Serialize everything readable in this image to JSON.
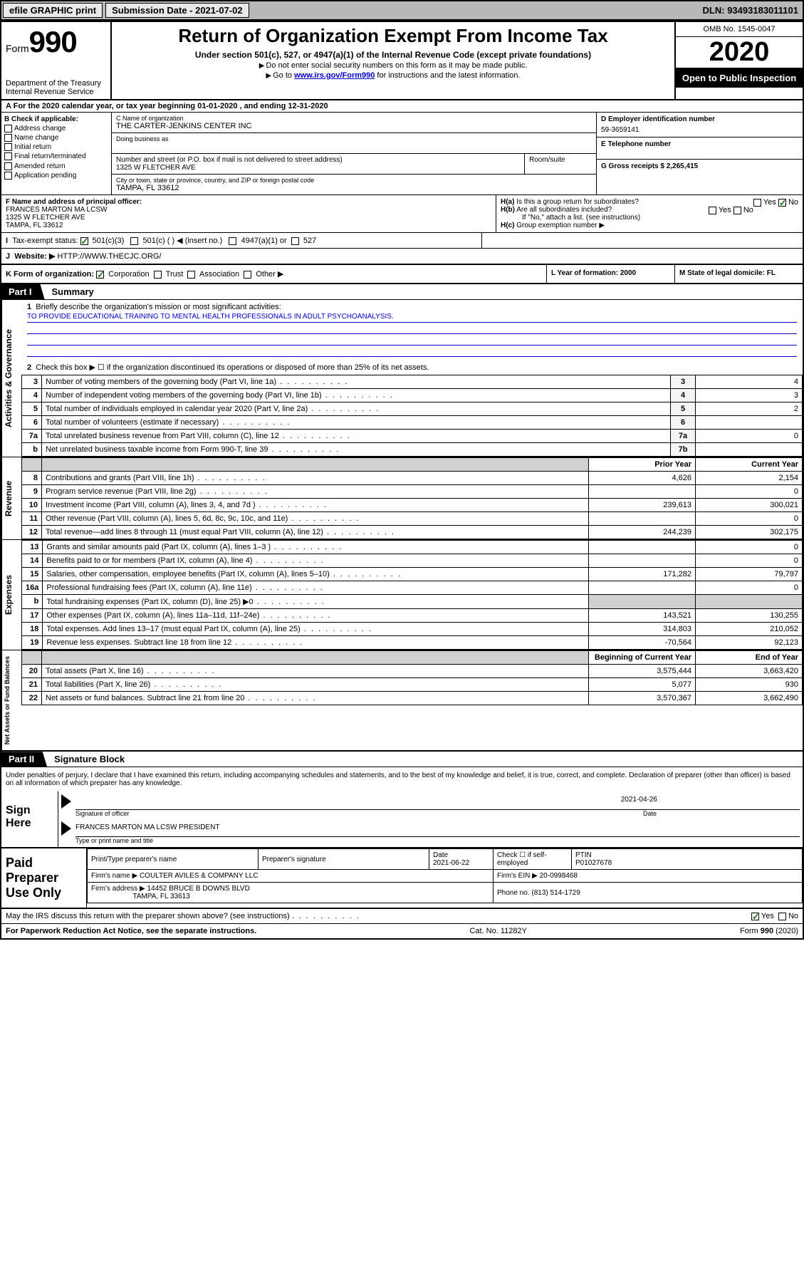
{
  "top": {
    "efile": "efile GRAPHIC print",
    "submission_label": "Submission Date - 2021-07-02",
    "dln_label": "DLN: 93493183011101"
  },
  "header": {
    "form_prefix": "Form",
    "form_num": "990",
    "dept": "Department of the Treasury\nInternal Revenue Service",
    "title": "Return of Organization Exempt From Income Tax",
    "sub": "Under section 501(c), 527, or 4947(a)(1) of the Internal Revenue Code (except private foundations)",
    "note1": "Do not enter social security numbers on this form as it may be made public.",
    "note2_pre": "Go to ",
    "note2_link": "www.irs.gov/Form990",
    "note2_post": " for instructions and the latest information.",
    "omb": "OMB No. 1545-0047",
    "year": "2020",
    "open": "Open to Public Inspection"
  },
  "row_a": "For the 2020 calendar year, or tax year beginning 01-01-2020   , and ending 12-31-2020",
  "section_b": {
    "label": "B Check if applicable:",
    "items": [
      "Address change",
      "Name change",
      "Initial return",
      "Final return/terminated",
      "Amended return",
      "Application pending"
    ]
  },
  "section_c": {
    "name_label": "C Name of organization",
    "name": "THE CARTER-JENKINS CENTER INC",
    "dba_label": "Doing business as",
    "addr_label": "Number and street (or P.O. box if mail is not delivered to street address)",
    "addr": "1325 W FLETCHER AVE",
    "room_label": "Room/suite",
    "city_label": "City or town, state or province, country, and ZIP or foreign postal code",
    "city": "TAMPA, FL  33612"
  },
  "section_d": {
    "label": "D Employer identification number",
    "ein": "59-3659141",
    "e_label": "E Telephone number",
    "g_label": "G Gross receipts $ 2,265,415"
  },
  "section_f": {
    "label": "F Name and address of principal officer:",
    "name": "FRANCES MARTON MA LCSW",
    "addr": "1325 W FLETCHER AVE",
    "city": "TAMPA, FL  33612"
  },
  "section_h": {
    "a": "Is this a group return for subordinates?",
    "b": "Are all subordinates included?",
    "b_note": "If \"No,\" attach a list. (see instructions)",
    "c": "Group exemption number ▶",
    "ha_no": true
  },
  "section_i": {
    "label": "Tax-exempt status:",
    "opt1": "501(c)(3)",
    "opt2": "501(c) (  ) ◀ (insert no.)",
    "opt3": "4947(a)(1) or",
    "opt4": "527"
  },
  "section_j": {
    "label": "Website: ▶",
    "val": "HTTP://WWW.THECJC.ORG/"
  },
  "section_k": {
    "label": "K Form of organization:",
    "opts": [
      "Corporation",
      "Trust",
      "Association",
      "Other ▶"
    ],
    "l_label": "L Year of formation: 2000",
    "m_label": "M State of legal domicile: FL"
  },
  "part1": {
    "badge": "Part I",
    "title": "Summary",
    "q1": "Briefly describe the organization's mission or most significant activities:",
    "mission": "TO PROVIDE EDUCATIONAL TRAINING TO MENTAL HEALTH PROFESSIONALS IN ADULT PSYCHOANALYSIS.",
    "q2": "Check this box ▶ ☐  if the organization discontinued its operations or disposed of more than 25% of its net assets.",
    "vtab_gov": "Activities & Governance",
    "lines_gov": [
      {
        "n": "3",
        "d": "Number of voting members of the governing body (Part VI, line 1a)",
        "box": "3",
        "v": "4"
      },
      {
        "n": "4",
        "d": "Number of independent voting members of the governing body (Part VI, line 1b)",
        "box": "4",
        "v": "3"
      },
      {
        "n": "5",
        "d": "Total number of individuals employed in calendar year 2020 (Part V, line 2a)",
        "box": "5",
        "v": "2"
      },
      {
        "n": "6",
        "d": "Total number of volunteers (estimate if necessary)",
        "box": "6",
        "v": ""
      },
      {
        "n": "7a",
        "d": "Total unrelated business revenue from Part VIII, column (C), line 12",
        "box": "7a",
        "v": "0"
      },
      {
        "n": "b",
        "d": "Net unrelated business taxable income from Form 990-T, line 39",
        "box": "7b",
        "v": ""
      }
    ],
    "hdr_prior": "Prior Year",
    "hdr_current": "Current Year",
    "vtab_rev": "Revenue",
    "lines_rev": [
      {
        "n": "8",
        "d": "Contributions and grants (Part VIII, line 1h)",
        "p": "4,626",
        "c": "2,154"
      },
      {
        "n": "9",
        "d": "Program service revenue (Part VIII, line 2g)",
        "p": "",
        "c": "0"
      },
      {
        "n": "10",
        "d": "Investment income (Part VIII, column (A), lines 3, 4, and 7d )",
        "p": "239,613",
        "c": "300,021"
      },
      {
        "n": "11",
        "d": "Other revenue (Part VIII, column (A), lines 5, 6d, 8c, 9c, 10c, and 11e)",
        "p": "",
        "c": "0"
      },
      {
        "n": "12",
        "d": "Total revenue—add lines 8 through 11 (must equal Part VIII, column (A), line 12)",
        "p": "244,239",
        "c": "302,175"
      }
    ],
    "vtab_exp": "Expenses",
    "lines_exp": [
      {
        "n": "13",
        "d": "Grants and similar amounts paid (Part IX, column (A), lines 1–3 )",
        "p": "",
        "c": "0"
      },
      {
        "n": "14",
        "d": "Benefits paid to or for members (Part IX, column (A), line 4)",
        "p": "",
        "c": "0"
      },
      {
        "n": "15",
        "d": "Salaries, other compensation, employee benefits (Part IX, column (A), lines 5–10)",
        "p": "171,282",
        "c": "79,797"
      },
      {
        "n": "16a",
        "d": "Professional fundraising fees (Part IX, column (A), line 11e)",
        "p": "",
        "c": "0"
      },
      {
        "n": "b",
        "d": "Total fundraising expenses (Part IX, column (D), line 25) ▶0",
        "p": "grey",
        "c": "grey"
      },
      {
        "n": "17",
        "d": "Other expenses (Part IX, column (A), lines 11a–11d, 11f–24e)",
        "p": "143,521",
        "c": "130,255"
      },
      {
        "n": "18",
        "d": "Total expenses. Add lines 13–17 (must equal Part IX, column (A), line 25)",
        "p": "314,803",
        "c": "210,052"
      },
      {
        "n": "19",
        "d": "Revenue less expenses. Subtract line 18 from line 12",
        "p": "-70,564",
        "c": "92,123"
      }
    ],
    "hdr_beg": "Beginning of Current Year",
    "hdr_end": "End of Year",
    "vtab_net": "Net Assets or Fund Balances",
    "lines_net": [
      {
        "n": "20",
        "d": "Total assets (Part X, line 16)",
        "p": "3,575,444",
        "c": "3,663,420"
      },
      {
        "n": "21",
        "d": "Total liabilities (Part X, line 26)",
        "p": "5,077",
        "c": "930"
      },
      {
        "n": "22",
        "d": "Net assets or fund balances. Subtract line 21 from line 20",
        "p": "3,570,367",
        "c": "3,662,490"
      }
    ]
  },
  "part2": {
    "badge": "Part II",
    "title": "Signature Block",
    "decl": "Under penalties of perjury, I declare that I have examined this return, including accompanying schedules and statements, and to the best of my knowledge and belief, it is true, correct, and complete. Declaration of preparer (other than officer) is based on all information of which preparer has any knowledge.",
    "sign_here": "Sign Here",
    "sig_officer": "Signature of officer",
    "sig_date": "2021-04-26",
    "date_label": "Date",
    "officer_name": "FRANCES MARTON MA LCSW  PRESIDENT",
    "type_label": "Type or print name and title",
    "paid": "Paid Preparer Use Only",
    "p_name_label": "Print/Type preparer's name",
    "p_sig_label": "Preparer's signature",
    "p_date_label": "Date",
    "p_date": "2021-06-22",
    "p_check": "Check ☐ if self-employed",
    "ptin_label": "PTIN",
    "ptin": "P01027678",
    "firm_name_label": "Firm's name    ▶",
    "firm_name": "COULTER AVILES & COMPANY LLC",
    "firm_ein_label": "Firm's EIN ▶",
    "firm_ein": "20-0998468",
    "firm_addr_label": "Firm's address ▶",
    "firm_addr1": "14452 BRUCE B DOWNS BLVD",
    "firm_addr2": "TAMPA, FL  33613",
    "phone_label": "Phone no.",
    "phone": "(813) 514-1729",
    "discuss": "May the IRS discuss this return with the preparer shown above? (see instructions)",
    "discuss_yes": true
  },
  "footer": {
    "left": "For Paperwork Reduction Act Notice, see the separate instructions.",
    "mid": "Cat. No. 11282Y",
    "right": "Form 990 (2020)"
  },
  "colors": {
    "link": "#0000cc",
    "check_green": "#1a7a1a",
    "grey_bg": "#d0d0d0"
  }
}
